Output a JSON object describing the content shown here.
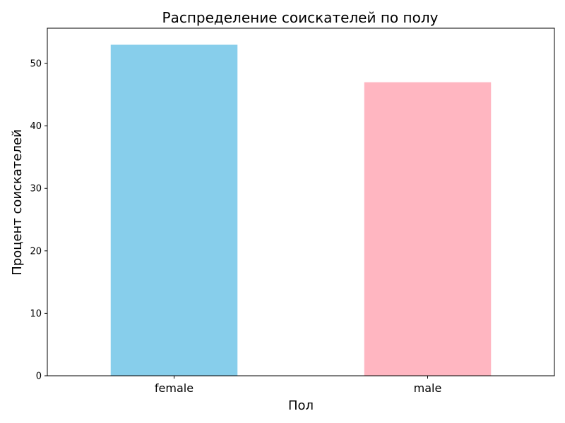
{
  "chart_data": {
    "type": "bar",
    "title": "Распределение соискателей по полу",
    "xlabel": "Пол",
    "ylabel": "Процент соискателей",
    "categories": [
      "female",
      "male"
    ],
    "values": [
      53.0,
      47.0
    ],
    "bar_colors": [
      "#87ceeb",
      "#ffb6c1"
    ],
    "ylim": [
      0,
      55.65
    ],
    "yticks": [
      0,
      10,
      20,
      30,
      40,
      50
    ],
    "grid": false,
    "legend": null
  }
}
